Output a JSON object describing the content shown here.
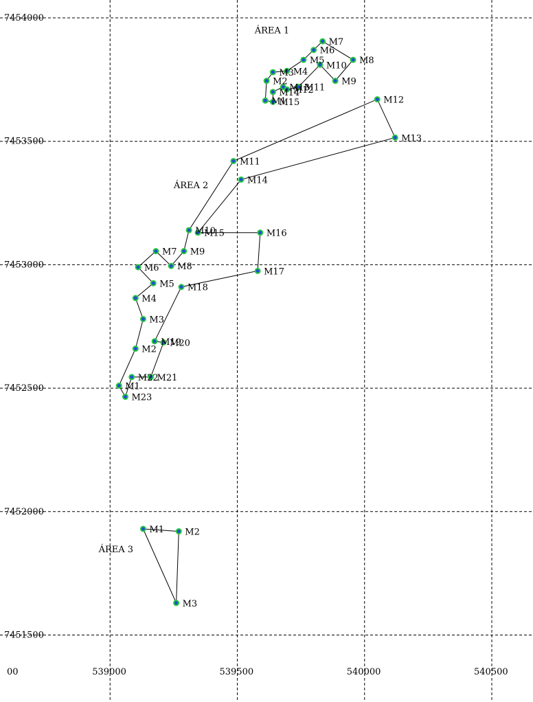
{
  "chart_data": {
    "type": "scatter",
    "colors": {
      "marker_fill": "#1f4fd1",
      "marker_stroke": "#27c93f",
      "line": "#000000",
      "grid": "#000000"
    },
    "x_ticks": [
      38500,
      39000,
      39500,
      40000,
      40500
    ],
    "x_tick_labels": [
      "00",
      "539000",
      "539500",
      "540000",
      "540500"
    ],
    "y_ticks": [
      7454000,
      7453500,
      7453000,
      7452500,
      7452000,
      7451500
    ],
    "y_tick_labels": [
      "7454000",
      "7453500",
      "7453000",
      "7452500",
      "7452000",
      "7451500"
    ],
    "xlim": [
      38500,
      40660
    ],
    "ylim": [
      7451350,
      7454075
    ],
    "grid": true,
    "areas": [
      {
        "name": "ÁREA 1",
        "label_at": [
          39568,
          7453938
        ],
        "closed": true,
        "points": [
          {
            "label": "M1",
            "x": 39610,
            "y": 7453665
          },
          {
            "label": "M2",
            "x": 39615,
            "y": 7453745
          },
          {
            "label": "M3",
            "x": 39640,
            "y": 7453780
          },
          {
            "label": "M4",
            "x": 39695,
            "y": 7453785
          },
          {
            "label": "M5",
            "x": 39760,
            "y": 7453830
          },
          {
            "label": "M6",
            "x": 39800,
            "y": 7453870
          },
          {
            "label": "M7",
            "x": 39835,
            "y": 7453905
          },
          {
            "label": "M8",
            "x": 39955,
            "y": 7453830
          },
          {
            "label": "M9",
            "x": 39885,
            "y": 7453745
          },
          {
            "label": "M10",
            "x": 39825,
            "y": 7453810
          },
          {
            "label": "M11",
            "x": 39740,
            "y": 7453720
          },
          {
            "label": "M12",
            "x": 39695,
            "y": 7453710
          },
          {
            "label": "M13",
            "x": 39680,
            "y": 7453720
          },
          {
            "label": "M14",
            "x": 39640,
            "y": 7453700
          },
          {
            "label": "M15",
            "x": 39640,
            "y": 7453660
          }
        ]
      },
      {
        "name": "ÁREA 2",
        "label_at": [
          39250,
          7453310
        ],
        "closed": true,
        "points": [
          {
            "label": "M1",
            "x": 39035,
            "y": 7452510
          },
          {
            "label": "M2",
            "x": 39100,
            "y": 7452660
          },
          {
            "label": "M3",
            "x": 39130,
            "y": 7452780
          },
          {
            "label": "M4",
            "x": 39100,
            "y": 7452865
          },
          {
            "label": "M5",
            "x": 39170,
            "y": 7452925
          },
          {
            "label": "M6",
            "x": 39110,
            "y": 7452990
          },
          {
            "label": "M7",
            "x": 39180,
            "y": 7453055
          },
          {
            "label": "M8",
            "x": 39240,
            "y": 7452995
          },
          {
            "label": "M9",
            "x": 39290,
            "y": 7453055
          },
          {
            "label": "M10",
            "x": 39310,
            "y": 7453140
          },
          {
            "label": "M11",
            "x": 39485,
            "y": 7453420
          },
          {
            "label": "M12",
            "x": 40050,
            "y": 7453670
          },
          {
            "label": "M13",
            "x": 40120,
            "y": 7453515
          },
          {
            "label": "M14",
            "x": 39515,
            "y": 7453345
          },
          {
            "label": "M15",
            "x": 39345,
            "y": 7453130
          },
          {
            "label": "M16",
            "x": 39590,
            "y": 7453130
          },
          {
            "label": "M17",
            "x": 39580,
            "y": 7452975
          },
          {
            "label": "M18",
            "x": 39280,
            "y": 7452910
          },
          {
            "label": "M19",
            "x": 39175,
            "y": 7452690
          },
          {
            "label": "M20",
            "x": 39210,
            "y": 7452685
          },
          {
            "label": "M21",
            "x": 39160,
            "y": 7452545
          },
          {
            "label": "M22",
            "x": 39085,
            "y": 7452545
          },
          {
            "label": "M23",
            "x": 39060,
            "y": 7452465
          }
        ]
      },
      {
        "name": "ÁREA 3",
        "label_at": [
          38955,
          7451835
        ],
        "closed": true,
        "points": [
          {
            "label": "M1",
            "x": 39130,
            "y": 7451930
          },
          {
            "label": "M2",
            "x": 39270,
            "y": 7451920
          },
          {
            "label": "M3",
            "x": 39260,
            "y": 7451630
          }
        ]
      }
    ]
  }
}
